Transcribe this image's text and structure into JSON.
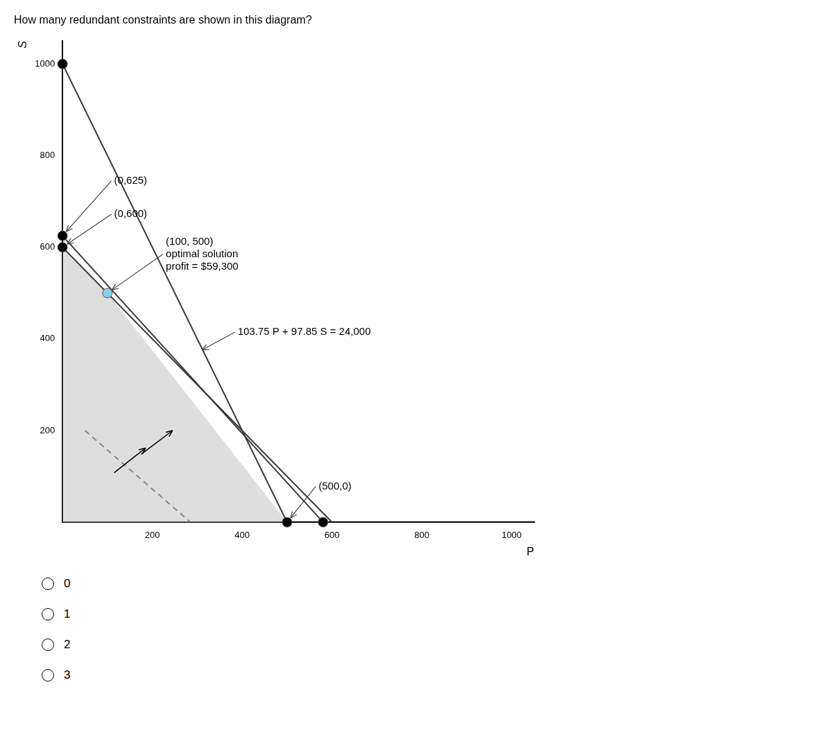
{
  "chart_data": {
    "type": "line",
    "title": "How many redundant constraints are shown in this diagram?",
    "xlabel": "P",
    "ylabel": "S",
    "xlim": [
      0,
      1050
    ],
    "ylim": [
      0,
      1050
    ],
    "xticks": [
      200,
      400,
      600,
      800,
      1000
    ],
    "yticks": [
      200,
      400,
      600,
      800,
      1000
    ],
    "grid": false,
    "series": [
      {
        "type": "area",
        "color": "#c8c8c8",
        "points": [
          [
            0,
            0
          ],
          [
            0,
            600
          ],
          [
            100,
            500
          ],
          [
            500,
            0
          ]
        ]
      },
      {
        "type": "line",
        "color": "#3a3a3a",
        "points": [
          [
            0,
            1000
          ],
          [
            500,
            0
          ]
        ]
      },
      {
        "type": "line",
        "color": "#3a3a3a",
        "points": [
          [
            0,
            625
          ],
          [
            580,
            0
          ]
        ]
      },
      {
        "type": "line",
        "color": "#3a3a3a",
        "points": [
          [
            0,
            600
          ],
          [
            600,
            0
          ]
        ]
      },
      {
        "type": "line",
        "color": "#888888",
        "line_style": "dashed",
        "points": [
          [
            50,
            200
          ],
          [
            285,
            0
          ]
        ]
      },
      {
        "type": "scatter",
        "color": "#000000",
        "points": [
          [
            0,
            1000
          ],
          [
            0,
            625
          ],
          [
            0,
            600
          ],
          [
            500,
            0
          ],
          [
            580,
            0
          ]
        ]
      },
      {
        "type": "scatter",
        "color": "#87ceeb",
        "points": [
          [
            100,
            500
          ]
        ]
      }
    ],
    "annotations": [
      {
        "text": "(0,625)",
        "xy": [
          0,
          625
        ],
        "xytext": [
          115,
          745
        ]
      },
      {
        "text": "(0,600)",
        "xy": [
          0,
          600
        ],
        "xytext": [
          115,
          672
        ]
      },
      {
        "text": "(100, 500)\noptimal solution\nprofit = $59,300",
        "xy": [
          100,
          500
        ],
        "xytext": [
          230,
          585
        ]
      },
      {
        "text": "103.75 P + 97.85 S = 24,000",
        "xy": [
          300,
          370
        ],
        "xytext": [
          390,
          415
        ]
      },
      {
        "text": "(500,0)",
        "xy": [
          500,
          0
        ],
        "xytext": [
          570,
          78
        ]
      }
    ],
    "arrows": [
      {
        "from": [
          115,
          108
        ],
        "to": [
          185,
          162
        ]
      },
      {
        "from": [
          175,
          148
        ],
        "to": [
          245,
          200
        ]
      }
    ],
    "choices": [
      "0",
      "1",
      "2",
      "3"
    ]
  }
}
